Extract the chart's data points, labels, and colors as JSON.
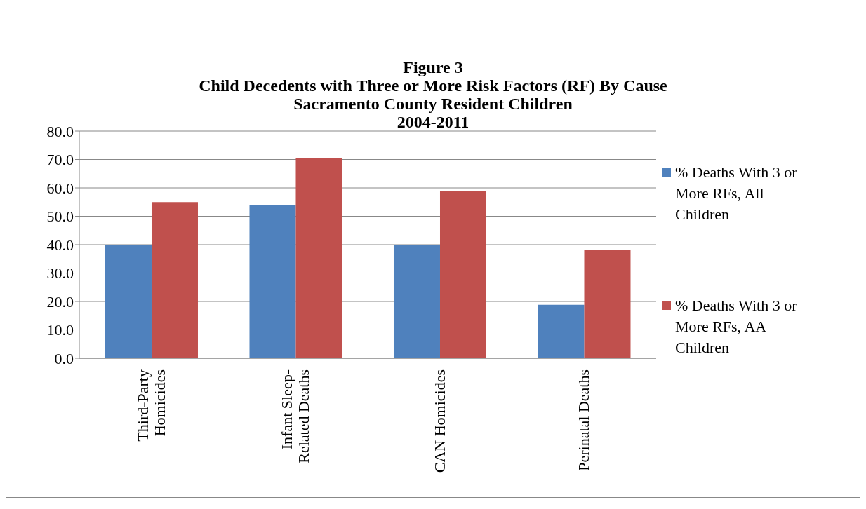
{
  "chart_data": {
    "type": "bar",
    "title": "Figure 3\nChild Decedents with Three or More Risk Factors (RF) By Cause\nSacramento County Resident Children\n2004-2011",
    "categories": [
      "Third-Party Homicides",
      "Infant Sleep-Related Deaths",
      "CAN Homicides",
      "Perinatal Deaths"
    ],
    "series": [
      {
        "name": "% Deaths With 3 or More RFs, All Children",
        "color": "#4f81bd",
        "values": [
          40.0,
          53.8,
          40.0,
          18.8
        ]
      },
      {
        "name": "% Deaths With 3 or More RFs, AA Children",
        "color": "#c0504d",
        "values": [
          55.0,
          70.4,
          58.8,
          38.0
        ]
      }
    ],
    "ylim": [
      0,
      80
    ],
    "yticks": [
      {
        "value": 0,
        "label": "0.0"
      },
      {
        "value": 10,
        "label": "10.0"
      },
      {
        "value": 20,
        "label": "20.0"
      },
      {
        "value": 30,
        "label": "30.0"
      },
      {
        "value": 40,
        "label": "40.0"
      },
      {
        "value": 50,
        "label": "50.0"
      },
      {
        "value": 60,
        "label": "60.0"
      },
      {
        "value": 70,
        "label": "70.0"
      },
      {
        "value": 80,
        "label": "80.0"
      }
    ],
    "grid": "y",
    "legend": "right"
  }
}
